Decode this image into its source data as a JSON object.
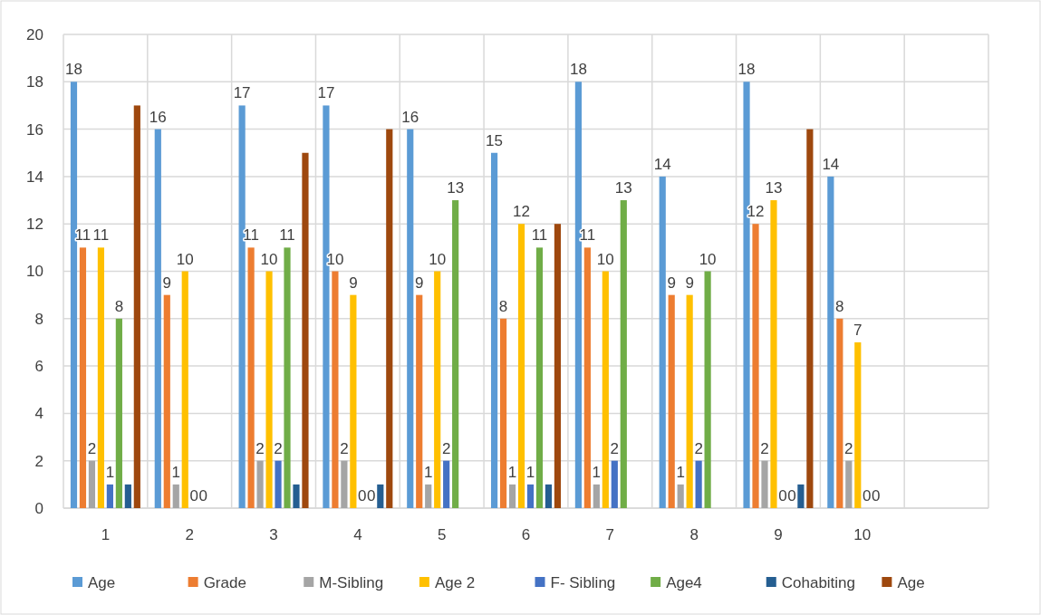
{
  "chart_data": {
    "type": "bar",
    "categories": [
      "1",
      "2",
      "3",
      "4",
      "5",
      "6",
      "7",
      "8",
      "9",
      "10",
      null
    ],
    "series": [
      {
        "name": "Age",
        "color": "#5b9bd5",
        "values": [
          18,
          16,
          17,
          17,
          16,
          15,
          18,
          14,
          18,
          14,
          null
        ],
        "value_labels": [
          "18",
          "16",
          "17",
          "17",
          "16",
          "15",
          "18",
          "14",
          "18",
          "14",
          null
        ]
      },
      {
        "name": "Grade",
        "color": "#ed7d31",
        "values": [
          11,
          9,
          11,
          10,
          9,
          8,
          11,
          9,
          12,
          8,
          null
        ],
        "value_labels": [
          "11",
          "9",
          "11",
          "10",
          "9",
          "8",
          "11",
          "9",
          "12",
          "8",
          null
        ]
      },
      {
        "name": "M-Sibling",
        "color": "#a5a5a5",
        "values": [
          2,
          1,
          2,
          2,
          1,
          1,
          1,
          1,
          2,
          2,
          null
        ],
        "value_labels": [
          "2",
          "1",
          "2",
          "2",
          "1",
          "1",
          "1",
          "1",
          "2",
          "2",
          null
        ]
      },
      {
        "name": "Age 2",
        "color": "#ffc000",
        "values": [
          11,
          10,
          10,
          9,
          10,
          12,
          10,
          9,
          13,
          7,
          null
        ],
        "value_labels": [
          "11",
          "10",
          "10",
          "9",
          "10",
          "12",
          "10",
          "9",
          "13",
          "7",
          null
        ]
      },
      {
        "name": "F- Sibling",
        "color": "#4472c4",
        "values": [
          1,
          0,
          2,
          0,
          2,
          1,
          2,
          2,
          0,
          0,
          null
        ],
        "value_labels": [
          "1",
          "0",
          "2",
          "0",
          "2",
          "1",
          "2",
          "2",
          "0",
          "0",
          null
        ]
      },
      {
        "name": "Age4",
        "color": "#70ad47",
        "values": [
          8,
          0,
          11,
          0,
          13,
          11,
          13,
          10,
          0,
          0,
          null
        ],
        "value_labels": [
          "8",
          "0",
          "11",
          "0",
          "13",
          "11",
          "13",
          "10",
          "0",
          "0",
          null
        ]
      },
      {
        "name": "Cohabiting",
        "color": "#255e91",
        "values": [
          1,
          null,
          1,
          1,
          null,
          1,
          null,
          null,
          1,
          null,
          null
        ]
      },
      {
        "name": "Age",
        "color": "#9e480e",
        "values": [
          17,
          null,
          15,
          16,
          null,
          12,
          null,
          null,
          16,
          null,
          null
        ]
      }
    ],
    "ylim": [
      0,
      20
    ],
    "yticks": [
      0,
      2,
      4,
      6,
      8,
      10,
      12,
      14,
      16,
      18,
      20
    ],
    "grid": true,
    "legend": "bottom"
  }
}
